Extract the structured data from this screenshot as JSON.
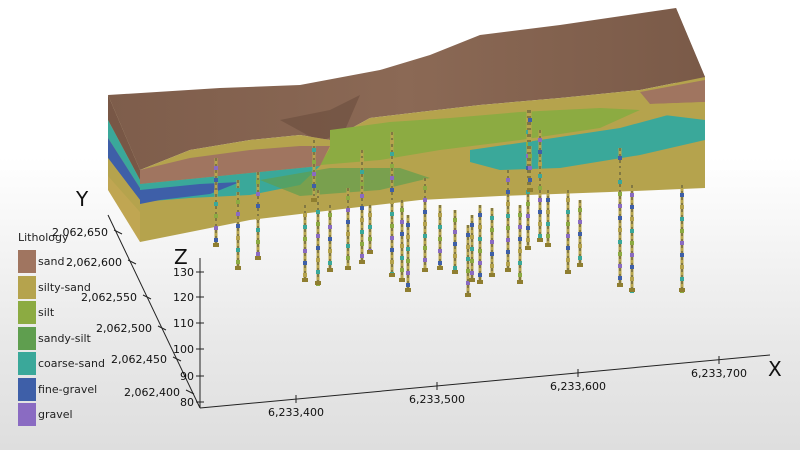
{
  "legend": {
    "title": "Lithology",
    "items": [
      {
        "label": "sand",
        "color": "#a07560"
      },
      {
        "label": "silty-sand",
        "color": "#b5a34d"
      },
      {
        "label": "silt",
        "color": "#8cab42"
      },
      {
        "label": "sandy-silt",
        "color": "#5f9e4f"
      },
      {
        "label": "coarse-sand",
        "color": "#3aa89a"
      },
      {
        "label": "fine-gravel",
        "color": "#3e5fa8"
      },
      {
        "label": "gravel",
        "color": "#8a6bc2"
      }
    ]
  },
  "axes": {
    "x_letter": "X",
    "y_letter": "Y",
    "z_letter": "Z",
    "x_ticks": [
      "6,233,400",
      "6,233,500",
      "6,233,600",
      "6,233,700"
    ],
    "y_ticks": [
      "2,062,650",
      "2,062,600",
      "2,062,550",
      "2,062,500",
      "2,062,450",
      "2,062,400"
    ],
    "z_ticks": [
      "130",
      "120",
      "110",
      "100",
      "90",
      "80"
    ]
  },
  "colors": {
    "surface": "#7a5a48",
    "surface_light": "#8c6a56",
    "side": "#6b4d3d",
    "borehole_stem": "#b8a64e",
    "borehole_dashed": "#333333"
  }
}
